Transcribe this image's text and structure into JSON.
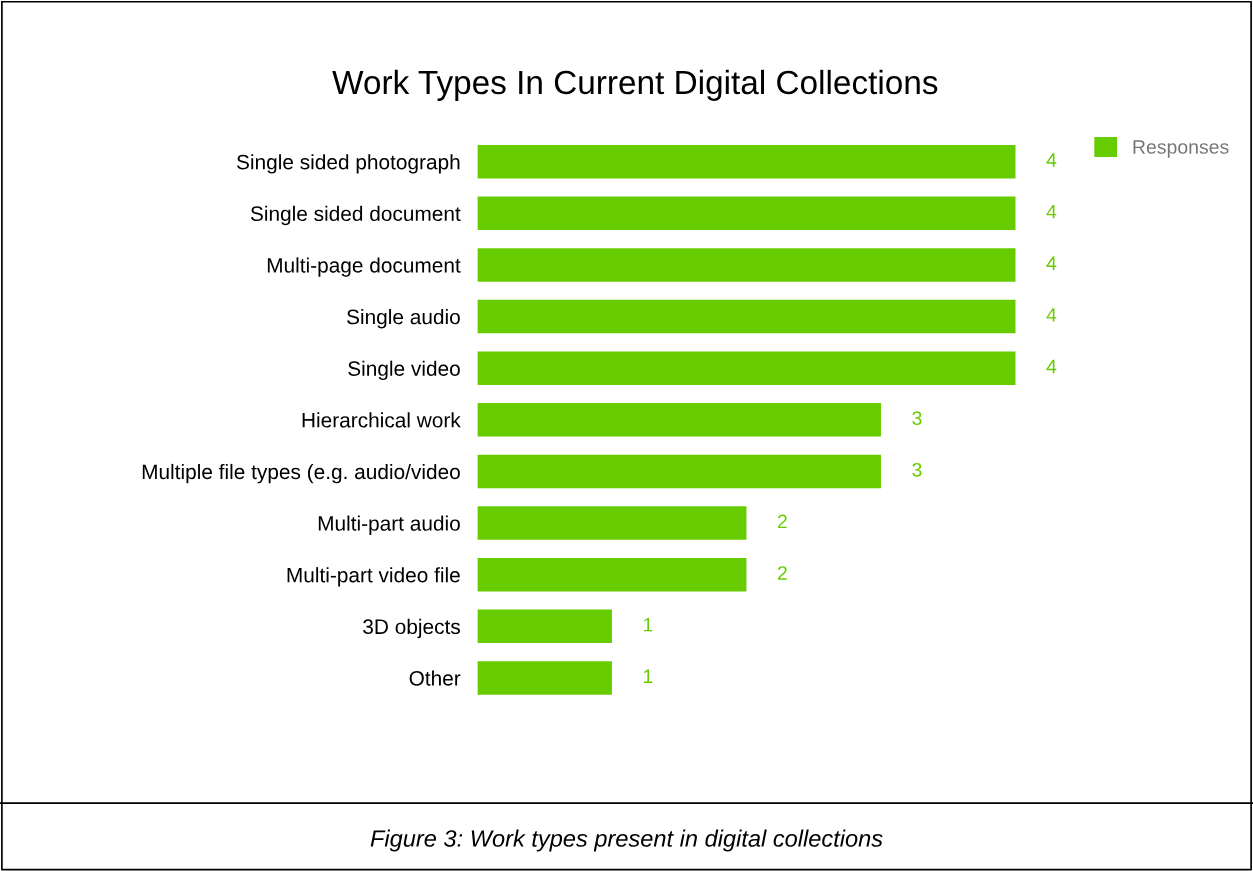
{
  "chart_data": {
    "type": "bar",
    "orientation": "horizontal",
    "title": "Work Types In Current Digital Collections",
    "categories": [
      "Single sided photograph",
      "Single sided document",
      "Multi-page document",
      "Single audio",
      "Single video",
      "Hierarchical work",
      "Multiple file types (e.g. audio/video",
      "Multi-part audio",
      "Multi-part video file",
      "3D objects",
      "Other"
    ],
    "series": [
      {
        "name": "Responses",
        "color": "#66cc00",
        "values": [
          4,
          4,
          4,
          4,
          4,
          3,
          3,
          2,
          2,
          1,
          1
        ]
      }
    ],
    "data_labels": true,
    "legend": "top right",
    "grid": false,
    "annotations": [
      "Figure 3: Work types present in digital collections"
    ]
  }
}
